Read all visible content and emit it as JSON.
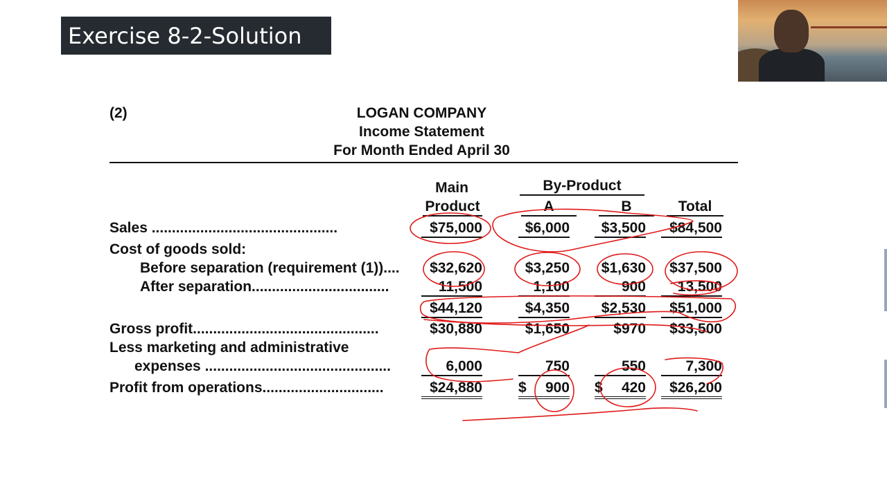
{
  "slide": {
    "title": "Exercise 8-2-Solution"
  },
  "statement": {
    "requirement": "(2)",
    "company": "LOGAN COMPANY",
    "name": "Income Statement",
    "period": "For Month Ended April 30"
  },
  "columns": {
    "main_1": "Main",
    "main_2": "Product",
    "byproduct": "By-Product",
    "a": "A",
    "b": "B",
    "total": "Total"
  },
  "rows": {
    "sales": {
      "label": "Sales ..............................................",
      "main": "$75,000",
      "a": "$6,000",
      "b": "$3,500",
      "total": "$84,500"
    },
    "cogs_label": "Cost of goods sold:",
    "before": {
      "label": "Before separation (requirement (1))....",
      "main": "$32,620",
      "a": "$3,250",
      "b": "$1,630",
      "total": "$37,500"
    },
    "after": {
      "label": "After separation..................................",
      "main": "11,500",
      "a": "1,100",
      "b": "900",
      "total": "13,500"
    },
    "subtotal": {
      "main": "$44,120",
      "a": "$4,350",
      "b": "$2,530",
      "total": "$51,000"
    },
    "gross": {
      "label": "Gross profit..............................................",
      "main": "$30,880",
      "a": "$1,650",
      "b": "$970",
      "total": "$33,500"
    },
    "less_label_1": "Less marketing and administrative",
    "less": {
      "label": "expenses ..............................................",
      "main": "6,000",
      "a": "750",
      "b": "550",
      "total": "7,300"
    },
    "profit": {
      "label": "Profit from operations..............................",
      "main": "$24,880",
      "a_sign": "$",
      "a": "900",
      "b_sign": "$",
      "b": "420",
      "total": "$26,200"
    }
  },
  "colors": {
    "title_bg": "#262b31",
    "annotation_ink": "#e01818"
  }
}
